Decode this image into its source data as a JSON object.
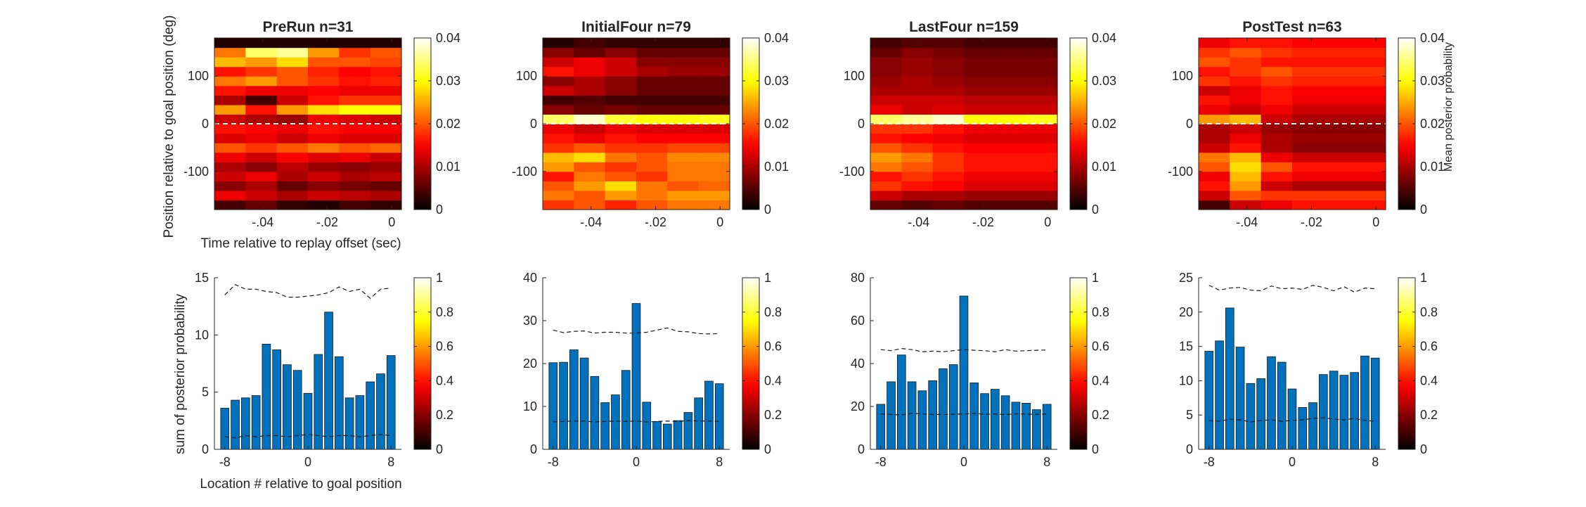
{
  "figure": {
    "ylabel_top": "Position relative to goal position (deg)",
    "xlabel_top": "Time relative to replay offset (sec)",
    "ylabel_bottom": "sum of posterior probability",
    "xlabel_bottom": "Location # relative to goal position",
    "colorbar_label": "Mean posterior probability"
  },
  "chart_data": [
    {
      "type": "heatmap",
      "title": "PreRun n=31",
      "colormap": "hot",
      "x_range": [
        -0.055,
        0.003
      ],
      "y_range": [
        -180,
        180
      ],
      "xticks": [
        -0.04,
        -0.02,
        0
      ],
      "yticks": [
        -100,
        0,
        100
      ],
      "clim": [
        0,
        0.04
      ],
      "cticks": [
        0,
        0.01,
        0.02,
        0.03,
        0.04
      ],
      "x_bins": [
        -0.05,
        -0.04,
        -0.03,
        -0.02,
        -0.01,
        0
      ],
      "y_bins": [
        -170,
        -150,
        -130,
        -110,
        -90,
        -70,
        -50,
        -30,
        -10,
        10,
        30,
        50,
        70,
        90,
        110,
        130,
        150,
        170
      ],
      "values": [
        [
          0.004,
          0.006,
          0.003,
          0.002,
          0.004,
          0.003
        ],
        [
          0.014,
          0.012,
          0.01,
          0.012,
          0.011,
          0.01
        ],
        [
          0.008,
          0.01,
          0.006,
          0.008,
          0.007,
          0.006
        ],
        [
          0.012,
          0.014,
          0.01,
          0.012,
          0.01,
          0.011
        ],
        [
          0.01,
          0.008,
          0.011,
          0.009,
          0.008,
          0.009
        ],
        [
          0.014,
          0.012,
          0.015,
          0.013,
          0.014,
          0.012
        ],
        [
          0.02,
          0.018,
          0.02,
          0.022,
          0.02,
          0.021
        ],
        [
          0.013,
          0.014,
          0.012,
          0.014,
          0.013,
          0.013
        ],
        [
          0.016,
          0.015,
          0.014,
          0.016,
          0.015,
          0.015
        ],
        [
          0.012,
          0.01,
          0.009,
          0.014,
          0.013,
          0.012
        ],
        [
          0.024,
          0.016,
          0.024,
          0.028,
          0.03,
          0.03
        ],
        [
          0.01,
          0.004,
          0.012,
          0.016,
          0.018,
          0.018
        ],
        [
          0.016,
          0.014,
          0.014,
          0.015,
          0.014,
          0.014
        ],
        [
          0.022,
          0.024,
          0.02,
          0.018,
          0.016,
          0.017
        ],
        [
          0.016,
          0.018,
          0.02,
          0.017,
          0.015,
          0.016
        ],
        [
          0.026,
          0.024,
          0.028,
          0.02,
          0.02,
          0.019
        ],
        [
          0.022,
          0.034,
          0.036,
          0.024,
          0.018,
          0.02
        ],
        [
          0.002,
          0.002,
          0.002,
          0.002,
          0.002,
          0.002
        ]
      ],
      "reference_line": 0
    },
    {
      "type": "heatmap",
      "title": "InitialFour n=79",
      "colormap": "hot",
      "x_range": [
        -0.055,
        0.003
      ],
      "y_range": [
        -180,
        180
      ],
      "xticks": [
        -0.04,
        -0.02,
        0
      ],
      "yticks": [
        -100,
        0,
        100
      ],
      "clim": [
        0,
        0.04
      ],
      "cticks": [
        0,
        0.01,
        0.02,
        0.03,
        0.04
      ],
      "x_bins": [
        -0.05,
        -0.04,
        -0.03,
        -0.02,
        -0.01,
        0
      ],
      "y_bins": [
        -170,
        -150,
        -130,
        -110,
        -90,
        -70,
        -50,
        -30,
        -10,
        10,
        30,
        50,
        70,
        90,
        110,
        130,
        150,
        170
      ],
      "values": [
        [
          0.018,
          0.02,
          0.017,
          0.02,
          0.022,
          0.022
        ],
        [
          0.022,
          0.02,
          0.024,
          0.022,
          0.024,
          0.024
        ],
        [
          0.02,
          0.024,
          0.028,
          0.022,
          0.02,
          0.021
        ],
        [
          0.016,
          0.022,
          0.02,
          0.018,
          0.022,
          0.022
        ],
        [
          0.024,
          0.02,
          0.018,
          0.02,
          0.022,
          0.022
        ],
        [
          0.026,
          0.028,
          0.022,
          0.02,
          0.023,
          0.023
        ],
        [
          0.018,
          0.02,
          0.018,
          0.018,
          0.019,
          0.019
        ],
        [
          0.016,
          0.014,
          0.016,
          0.015,
          0.015,
          0.015
        ],
        [
          0.014,
          0.012,
          0.014,
          0.013,
          0.013,
          0.013
        ],
        [
          0.034,
          0.038,
          0.032,
          0.03,
          0.03,
          0.031
        ],
        [
          0.008,
          0.006,
          0.007,
          0.006,
          0.006,
          0.006
        ],
        [
          0.004,
          0.005,
          0.004,
          0.004,
          0.004,
          0.004
        ],
        [
          0.012,
          0.01,
          0.008,
          0.006,
          0.006,
          0.006
        ],
        [
          0.008,
          0.01,
          0.008,
          0.006,
          0.006,
          0.006
        ],
        [
          0.016,
          0.014,
          0.012,
          0.01,
          0.009,
          0.009
        ],
        [
          0.012,
          0.014,
          0.012,
          0.008,
          0.008,
          0.008
        ],
        [
          0.008,
          0.006,
          0.008,
          0.006,
          0.006,
          0.006
        ],
        [
          0.002,
          0.004,
          0.003,
          0.003,
          0.003,
          0.003
        ]
      ],
      "reference_line": 0
    },
    {
      "type": "heatmap",
      "title": "LastFour n=159",
      "colormap": "hot",
      "x_range": [
        -0.055,
        0.003
      ],
      "y_range": [
        -180,
        180
      ],
      "xticks": [
        -0.04,
        -0.02,
        0
      ],
      "yticks": [
        -100,
        0,
        100
      ],
      "clim": [
        0,
        0.04
      ],
      "cticks": [
        0,
        0.01,
        0.02,
        0.03,
        0.04
      ],
      "x_bins": [
        -0.05,
        -0.04,
        -0.03,
        -0.02,
        -0.01,
        0
      ],
      "y_bins": [
        -170,
        -150,
        -130,
        -110,
        -90,
        -70,
        -50,
        -30,
        -10,
        10,
        30,
        50,
        70,
        90,
        110,
        130,
        150,
        170
      ],
      "values": [
        [
          0.006,
          0.005,
          0.006,
          0.005,
          0.005,
          0.005
        ],
        [
          0.012,
          0.01,
          0.01,
          0.009,
          0.009,
          0.009
        ],
        [
          0.018,
          0.016,
          0.015,
          0.013,
          0.013,
          0.013
        ],
        [
          0.016,
          0.018,
          0.016,
          0.014,
          0.014,
          0.014
        ],
        [
          0.022,
          0.02,
          0.018,
          0.016,
          0.016,
          0.016
        ],
        [
          0.024,
          0.022,
          0.018,
          0.016,
          0.016,
          0.016
        ],
        [
          0.02,
          0.018,
          0.016,
          0.015,
          0.015,
          0.015
        ],
        [
          0.016,
          0.015,
          0.014,
          0.013,
          0.013,
          0.013
        ],
        [
          0.018,
          0.018,
          0.016,
          0.014,
          0.014,
          0.014
        ],
        [
          0.034,
          0.036,
          0.038,
          0.03,
          0.03,
          0.031
        ],
        [
          0.014,
          0.012,
          0.013,
          0.012,
          0.012,
          0.012
        ],
        [
          0.012,
          0.012,
          0.012,
          0.011,
          0.011,
          0.011
        ],
        [
          0.01,
          0.01,
          0.01,
          0.009,
          0.009,
          0.009
        ],
        [
          0.009,
          0.01,
          0.009,
          0.008,
          0.008,
          0.008
        ],
        [
          0.008,
          0.009,
          0.008,
          0.007,
          0.007,
          0.007
        ],
        [
          0.008,
          0.009,
          0.008,
          0.007,
          0.007,
          0.007
        ],
        [
          0.006,
          0.008,
          0.007,
          0.006,
          0.006,
          0.006
        ],
        [
          0.004,
          0.005,
          0.005,
          0.004,
          0.004,
          0.004
        ]
      ],
      "reference_line": 0
    },
    {
      "type": "heatmap",
      "title": "PostTest n=63",
      "colormap": "hot",
      "x_range": [
        -0.055,
        0.003
      ],
      "y_range": [
        -180,
        180
      ],
      "xticks": [
        -0.04,
        -0.02,
        0
      ],
      "yticks": [
        -100,
        0,
        100
      ],
      "clim": [
        0,
        0.04
      ],
      "cticks": [
        0,
        0.01,
        0.02,
        0.03,
        0.04
      ],
      "x_bins": [
        -0.05,
        -0.04,
        -0.03,
        -0.02,
        -0.01,
        0
      ],
      "y_bins": [
        -170,
        -150,
        -130,
        -110,
        -90,
        -70,
        -50,
        -30,
        -10,
        10,
        30,
        50,
        70,
        90,
        110,
        130,
        150,
        170
      ],
      "values": [
        [
          0.004,
          0.012,
          0.014,
          0.016,
          0.016,
          0.016
        ],
        [
          0.012,
          0.02,
          0.018,
          0.018,
          0.018,
          0.018
        ],
        [
          0.016,
          0.024,
          0.012,
          0.01,
          0.01,
          0.01
        ],
        [
          0.014,
          0.026,
          0.016,
          0.014,
          0.014,
          0.014
        ],
        [
          0.02,
          0.028,
          0.02,
          0.016,
          0.016,
          0.016
        ],
        [
          0.022,
          0.026,
          0.014,
          0.012,
          0.012,
          0.012
        ],
        [
          0.012,
          0.016,
          0.01,
          0.008,
          0.008,
          0.008
        ],
        [
          0.01,
          0.014,
          0.01,
          0.009,
          0.009,
          0.009
        ],
        [
          0.01,
          0.012,
          0.009,
          0.008,
          0.008,
          0.008
        ],
        [
          0.024,
          0.026,
          0.012,
          0.01,
          0.01,
          0.01
        ],
        [
          0.014,
          0.012,
          0.014,
          0.012,
          0.012,
          0.012
        ],
        [
          0.016,
          0.014,
          0.016,
          0.014,
          0.014,
          0.014
        ],
        [
          0.012,
          0.014,
          0.016,
          0.015,
          0.015,
          0.015
        ],
        [
          0.018,
          0.016,
          0.018,
          0.017,
          0.017,
          0.017
        ],
        [
          0.016,
          0.018,
          0.02,
          0.018,
          0.018,
          0.018
        ],
        [
          0.02,
          0.018,
          0.016,
          0.016,
          0.016,
          0.016
        ],
        [
          0.018,
          0.02,
          0.018,
          0.017,
          0.017,
          0.017
        ],
        [
          0.014,
          0.016,
          0.016,
          0.015,
          0.015,
          0.015
        ]
      ],
      "reference_line": 0
    },
    {
      "type": "bar",
      "x": [
        -8,
        -7,
        -6,
        -5,
        -4,
        -3,
        -2,
        -1,
        0,
        1,
        2,
        3,
        4,
        5,
        6,
        7,
        8
      ],
      "values": [
        3.6,
        4.3,
        4.5,
        4.7,
        9.2,
        8.7,
        7.4,
        6.9,
        4.9,
        8.3,
        12.0,
        8.1,
        4.5,
        4.7,
        5.9,
        6.6,
        8.2
      ],
      "upper_bound": [
        13.5,
        14.4,
        14.0,
        14.0,
        13.8,
        13.7,
        13.3,
        13.3,
        13.4,
        13.5,
        13.7,
        14.2,
        13.8,
        14.0,
        13.2,
        14.0,
        14.1
      ],
      "lower_bound": [
        1.1,
        1.0,
        1.2,
        1.1,
        1.2,
        1.2,
        1.1,
        1.2,
        1.3,
        1.2,
        1.1,
        1.2,
        1.2,
        1.1,
        1.2,
        1.3,
        1.2
      ],
      "xticks": [
        -8,
        0,
        8
      ],
      "xlim": [
        -9,
        9
      ],
      "ylim": [
        0,
        15
      ],
      "yticks": [
        0,
        5,
        10,
        15
      ],
      "clim": [
        0,
        1
      ],
      "cticks": [
        0,
        0.2,
        0.4,
        0.6,
        0.8,
        1
      ]
    },
    {
      "type": "bar",
      "x": [
        -8,
        -7,
        -6,
        -5,
        -4,
        -3,
        -2,
        -1,
        0,
        1,
        2,
        3,
        4,
        5,
        6,
        7,
        8
      ],
      "values": [
        20.2,
        20.3,
        23.2,
        21.3,
        17.0,
        10.9,
        12.7,
        18.4,
        34.0,
        11.0,
        6.5,
        5.9,
        6.7,
        8.6,
        12.0,
        15.9,
        15.3
      ],
      "upper_bound": [
        27.8,
        27.2,
        27.5,
        27.6,
        27.1,
        27.3,
        27.3,
        27.1,
        27.1,
        27.3,
        27.8,
        28.3,
        27.5,
        27.4,
        27.0,
        26.9,
        27.0
      ],
      "lower_bound": [
        6.4,
        6.5,
        6.6,
        6.6,
        6.4,
        6.5,
        6.6,
        6.5,
        6.6,
        6.4,
        6.5,
        6.6,
        6.5,
        6.7,
        6.6,
        6.6,
        6.5
      ],
      "xticks": [
        -8,
        0,
        8
      ],
      "xlim": [
        -9,
        9
      ],
      "ylim": [
        0,
        40
      ],
      "yticks": [
        0,
        10,
        20,
        30,
        40
      ],
      "clim": [
        0,
        1
      ],
      "cticks": [
        0,
        0.2,
        0.4,
        0.6,
        0.8,
        1
      ]
    },
    {
      "type": "bar",
      "x": [
        -8,
        -7,
        -6,
        -5,
        -4,
        -3,
        -2,
        -1,
        0,
        1,
        2,
        3,
        4,
        5,
        6,
        7,
        8
      ],
      "values": [
        21.0,
        31.5,
        44.0,
        31.5,
        27.3,
        32.0,
        37.6,
        39.5,
        71.5,
        31.0,
        26.0,
        28.0,
        25.0,
        22.0,
        21.5,
        18.5,
        21.0
      ],
      "upper_bound": [
        46.5,
        46.0,
        47.0,
        46.5,
        45.5,
        45.8,
        45.5,
        46.0,
        46.5,
        46.2,
        46.0,
        45.5,
        46.5,
        45.8,
        46.0,
        46.2,
        46.3
      ],
      "lower_bound": [
        16.5,
        16.3,
        16.0,
        16.8,
        16.5,
        16.3,
        16.2,
        16.4,
        16.5,
        16.8,
        16.3,
        16.5,
        16.2,
        16.6,
        16.4,
        16.3,
        16.5
      ],
      "xticks": [
        -8,
        0,
        8
      ],
      "xlim": [
        -9,
        9
      ],
      "ylim": [
        0,
        80
      ],
      "yticks": [
        0,
        20,
        40,
        60,
        80
      ],
      "clim": [
        0,
        1
      ],
      "cticks": [
        0,
        0.2,
        0.4,
        0.6,
        0.8,
        1
      ]
    },
    {
      "type": "bar",
      "x": [
        -8,
        -7,
        -6,
        -5,
        -4,
        -3,
        -2,
        -1,
        0,
        1,
        2,
        3,
        4,
        5,
        6,
        7,
        8
      ],
      "values": [
        14.3,
        15.8,
        20.6,
        14.9,
        9.6,
        10.3,
        13.5,
        12.7,
        8.8,
        6.1,
        6.8,
        10.9,
        11.4,
        10.8,
        11.2,
        13.6,
        13.3
      ],
      "upper_bound": [
        23.9,
        23.2,
        23.5,
        23.6,
        23.2,
        23.1,
        23.8,
        23.4,
        23.5,
        23.3,
        23.9,
        23.6,
        23.1,
        23.7,
        22.9,
        23.5,
        23.4
      ],
      "lower_bound": [
        4.2,
        4.1,
        4.4,
        4.3,
        4.0,
        4.2,
        4.3,
        4.1,
        4.2,
        4.3,
        4.5,
        4.6,
        4.4,
        4.3,
        4.5,
        4.2,
        4.1
      ],
      "xticks": [
        -8,
        0,
        8
      ],
      "xlim": [
        -9,
        9
      ],
      "ylim": [
        0,
        25
      ],
      "yticks": [
        0,
        5,
        10,
        15,
        20,
        25
      ],
      "clim": [
        0,
        1
      ],
      "cticks": [
        0,
        0.2,
        0.4,
        0.6,
        0.8,
        1
      ]
    }
  ]
}
